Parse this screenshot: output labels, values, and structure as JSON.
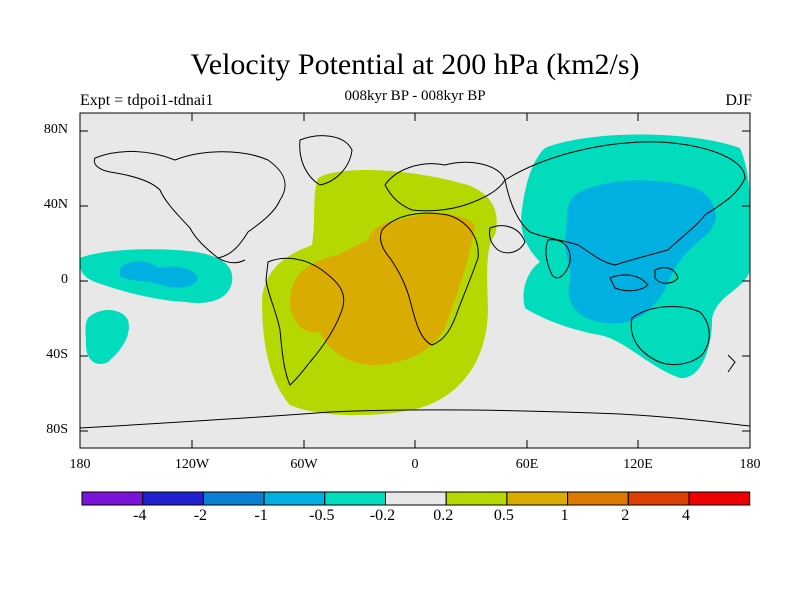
{
  "title": "Velocity Potential at 200 hPa (km2/s)",
  "subtitle": "008kyr BP - 008kyr BP",
  "experiment": "Expt = tdpoi1-tdnai1",
  "season": "DJF",
  "lat_labels": [
    "80N",
    "40N",
    "0",
    "40S",
    "80S"
  ],
  "lon_labels": [
    "180",
    "120W",
    "60W",
    "0",
    "60E",
    "120E",
    "180"
  ],
  "colorbar": {
    "colors": [
      "#7a14d9",
      "#2020d0",
      "#0a80d4",
      "#00b0e0",
      "#00dcbc",
      "#e8e8e8",
      "#b4d800",
      "#d8ac00",
      "#dc7a00",
      "#dc4000",
      "#ee0000"
    ],
    "labels": [
      "-4",
      "-2",
      "-1",
      "-0.5",
      "-0.2",
      "0.2",
      "0.5",
      "1",
      "2",
      "4"
    ]
  }
}
